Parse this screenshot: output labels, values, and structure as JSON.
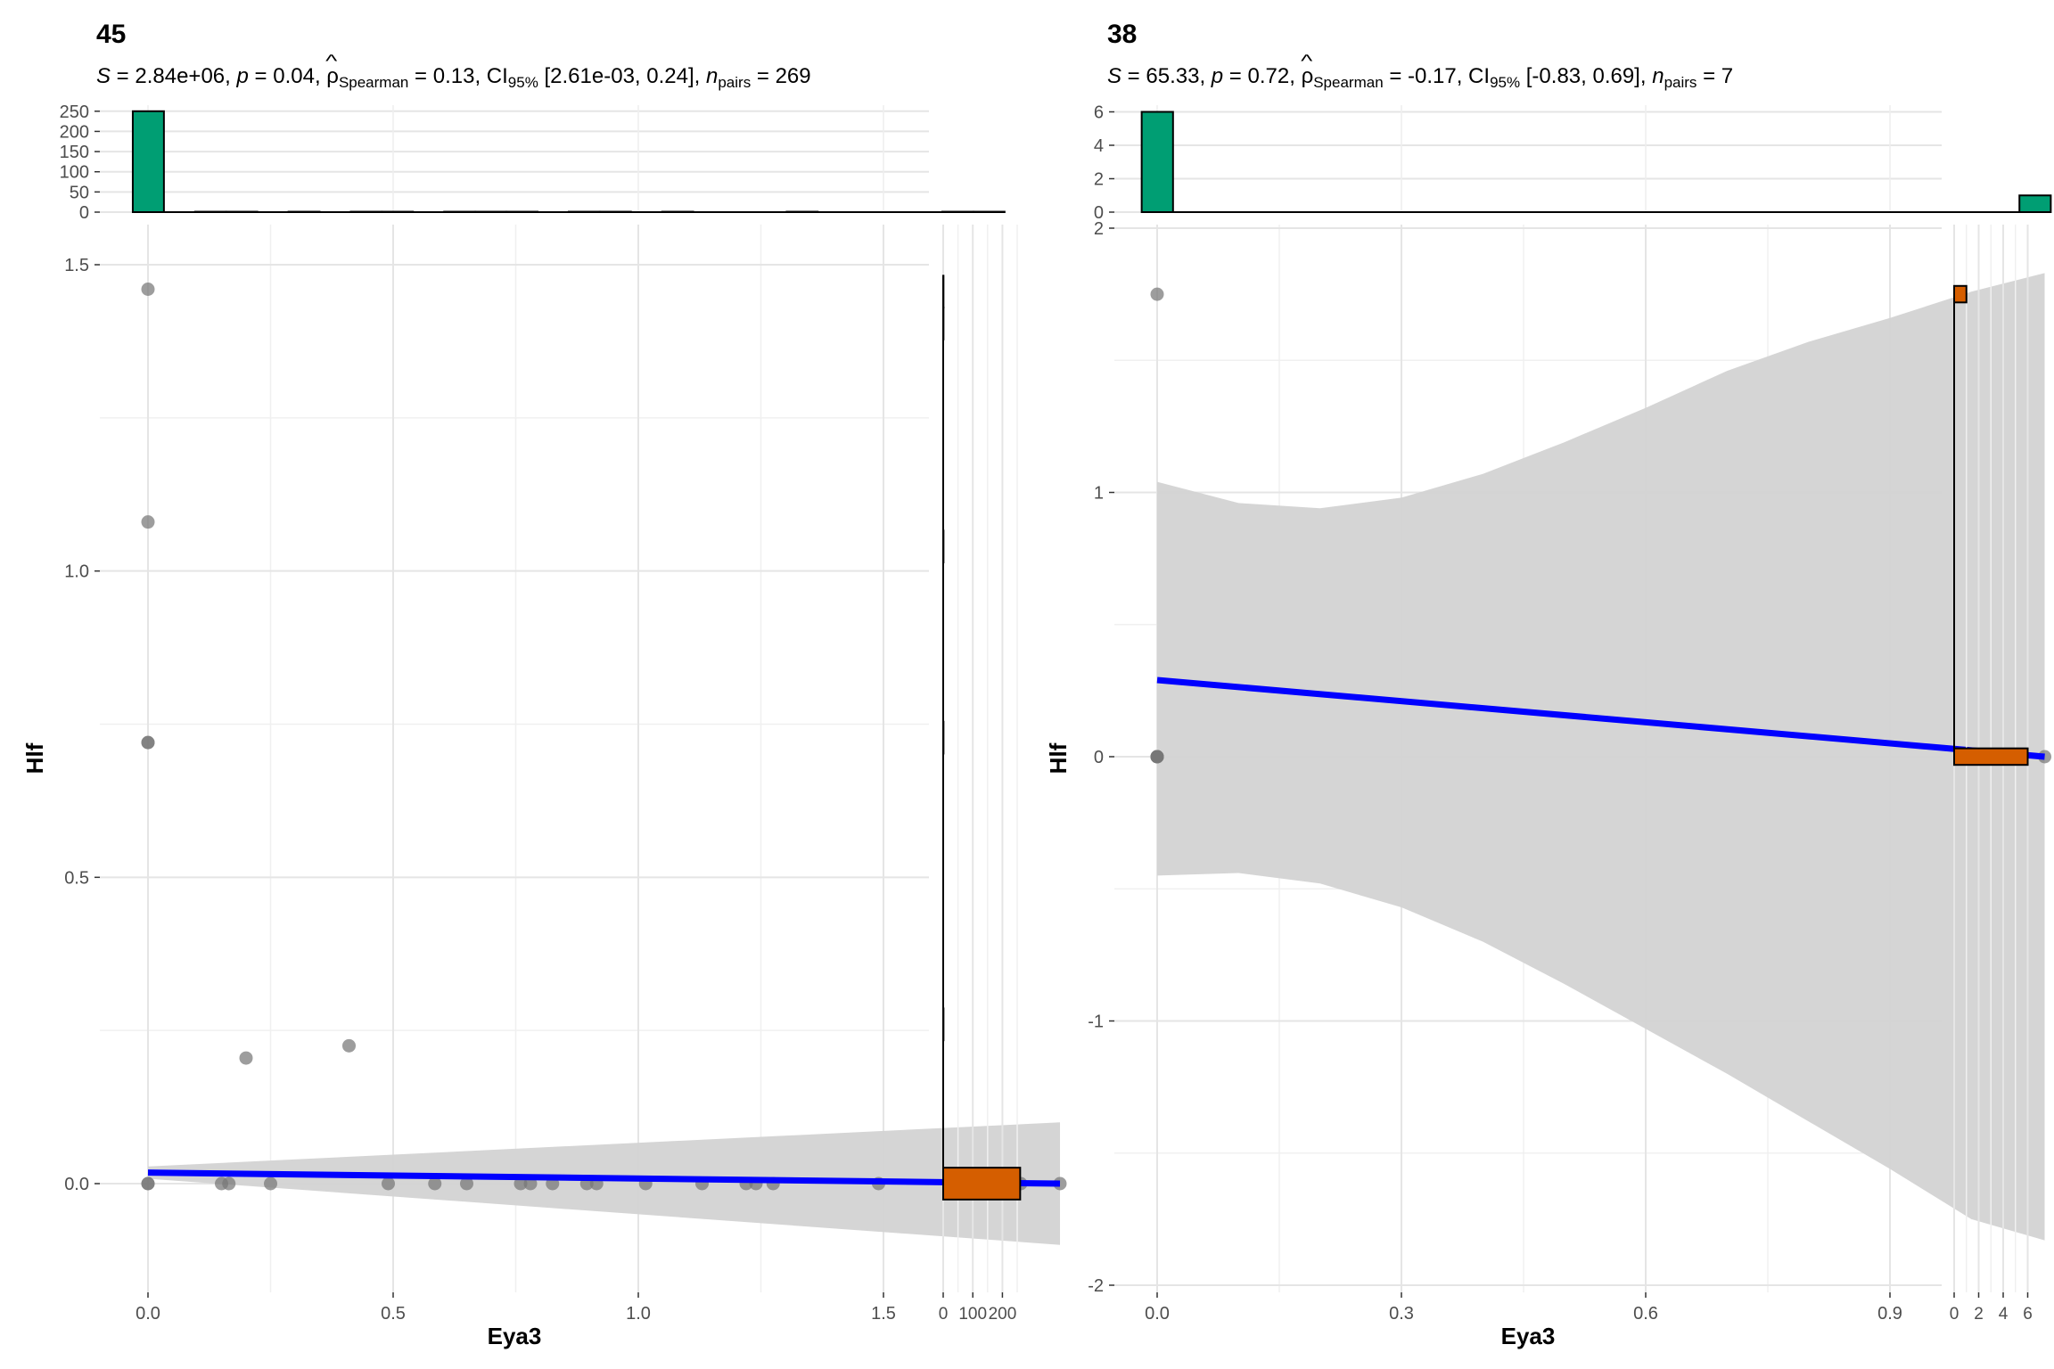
{
  "chart_data": [
    {
      "type": "scatter",
      "title": "45",
      "subtitle": {
        "S": "2.84e+06",
        "p": "0.04",
        "rho": "0.13",
        "ci": "[2.61e-03, 0.24]",
        "n": "269"
      },
      "xlabel": "Eya3",
      "ylabel": "Hlf",
      "xlim": [
        -0.05,
        1.9
      ],
      "ylim": [
        -0.18,
        1.58
      ],
      "x_ticks": [
        "0.0",
        "0.5",
        "1.0",
        "1.5"
      ],
      "x_tick_values": [
        0.0,
        0.5,
        1.0,
        1.5
      ],
      "y_ticks": [
        "0.0",
        "0.5",
        "1.0",
        "1.5"
      ],
      "y_tick_values": [
        0.0,
        0.5,
        1.0,
        1.5
      ],
      "points": [
        {
          "x": 0.0,
          "y": 1.46
        },
        {
          "x": 0.0,
          "y": 1.08
        },
        {
          "x": 0.0,
          "y": 0.72
        },
        {
          "x": 0.0,
          "y": 0.72
        },
        {
          "x": 0.0,
          "y": 0.0
        },
        {
          "x": 0.0,
          "y": 0.0
        },
        {
          "x": 0.2,
          "y": 0.205
        },
        {
          "x": 0.41,
          "y": 0.225
        },
        {
          "x": 0.15,
          "y": 0.0
        },
        {
          "x": 0.165,
          "y": 0.0
        },
        {
          "x": 0.25,
          "y": 0.0
        },
        {
          "x": 0.49,
          "y": 0.0
        },
        {
          "x": 0.585,
          "y": 0.0
        },
        {
          "x": 0.65,
          "y": 0.0
        },
        {
          "x": 0.76,
          "y": 0.0
        },
        {
          "x": 0.78,
          "y": 0.0
        },
        {
          "x": 0.825,
          "y": 0.0
        },
        {
          "x": 0.895,
          "y": 0.0
        },
        {
          "x": 0.915,
          "y": 0.0
        },
        {
          "x": 1.015,
          "y": 0.0
        },
        {
          "x": 1.13,
          "y": 0.0
        },
        {
          "x": 1.22,
          "y": 0.0
        },
        {
          "x": 1.24,
          "y": 0.0
        },
        {
          "x": 1.275,
          "y": 0.0
        },
        {
          "x": 1.49,
          "y": 0.0
        },
        {
          "x": 1.78,
          "y": 0.0
        },
        {
          "x": 1.86,
          "y": 0.0
        }
      ],
      "fit": {
        "x": [
          0.0,
          1.86
        ],
        "y": [
          0.018,
          0.0
        ]
      },
      "band": {
        "x": [
          0.0,
          1.86
        ],
        "lower": [
          0.008,
          -0.1
        ],
        "upper": [
          0.028,
          0.1
        ]
      },
      "top_hist": {
        "ticks": [
          "0",
          "50",
          "100",
          "150",
          "200",
          "250"
        ],
        "tick_values": [
          0,
          50,
          100,
          150,
          200,
          250
        ],
        "ymax": 265,
        "bin_start": -0.031,
        "bin_width": 0.0635,
        "counts": [
          250,
          0,
          1,
          1,
          0,
          1,
          0,
          1,
          1,
          0,
          1,
          1,
          1,
          0,
          1,
          1,
          0,
          1,
          0,
          0,
          0,
          1,
          0,
          0,
          0,
          0,
          1,
          1
        ]
      },
      "right_hist": {
        "ticks": [
          "0",
          "100",
          "200"
        ],
        "tick_values": [
          0,
          100,
          200
        ],
        "xmax": 265,
        "bin_start": -0.026,
        "bin_width": 0.052,
        "counts": [
          260,
          0,
          0,
          0,
          0,
          1,
          0,
          0,
          0,
          0,
          0,
          0,
          0,
          0,
          1,
          0,
          0,
          0,
          0,
          0,
          1,
          0,
          0,
          0,
          0,
          0,
          0,
          1,
          1
        ]
      },
      "colors": {
        "top_hist": "#009E73",
        "right_hist": "#D55E00",
        "fit": "#0000FF",
        "band": "#D3D3D3",
        "points": "#777777"
      }
    },
    {
      "type": "scatter",
      "title": "38",
      "subtitle": {
        "S": "65.33",
        "p": "0.72",
        "rho": "-0.17",
        "ci": "[-0.83, 0.69]",
        "n": "7"
      },
      "xlabel": "Eya3",
      "ylabel": "Hlf",
      "xlim": [
        -0.06,
        1.16
      ],
      "ylim": [
        -2.0,
        2.0
      ],
      "x_ticks": [
        "0.0",
        "0.3",
        "0.6",
        "0.9"
      ],
      "x_tick_values": [
        0.0,
        0.3,
        0.6,
        0.9
      ],
      "y_ticks": [
        "-2",
        "-1",
        "0",
        "1",
        "2"
      ],
      "y_tick_values": [
        -2,
        -1,
        0,
        1,
        2
      ],
      "points": [
        {
          "x": 0.0,
          "y": 1.75
        },
        {
          "x": 0.0,
          "y": 0.0
        },
        {
          "x": 0.0,
          "y": 0.0
        },
        {
          "x": 0.0,
          "y": 0.0
        },
        {
          "x": 0.0,
          "y": 0.0
        },
        {
          "x": 0.0,
          "y": 0.0
        },
        {
          "x": 1.09,
          "y": 0.0
        }
      ],
      "fit": {
        "x": [
          0.0,
          1.09
        ],
        "y": [
          0.29,
          0.0
        ]
      },
      "band": {
        "x": [
          0.0,
          0.1,
          0.2,
          0.3,
          0.4,
          0.5,
          0.6,
          0.7,
          0.8,
          0.9,
          1.0,
          1.09
        ],
        "lower": [
          -0.45,
          -0.44,
          -0.48,
          -0.57,
          -0.7,
          -0.86,
          -1.03,
          -1.2,
          -1.38,
          -1.56,
          -1.75,
          -1.83
        ],
        "upper": [
          1.04,
          0.96,
          0.94,
          0.98,
          1.07,
          1.19,
          1.32,
          1.46,
          1.57,
          1.66,
          1.76,
          1.83
        ]
      },
      "top_hist": {
        "ticks": [
          "0",
          "2",
          "4",
          "6"
        ],
        "tick_values": [
          0,
          2,
          4,
          6
        ],
        "ymax": 6.4,
        "bin_start": -0.019,
        "bin_width": 0.0385,
        "counts": [
          6,
          0,
          0,
          0,
          0,
          0,
          0,
          0,
          0,
          0,
          0,
          0,
          0,
          0,
          0,
          0,
          0,
          0,
          0,
          0,
          0,
          0,
          0,
          0,
          0,
          0,
          0,
          0,
          1
        ]
      },
      "right_hist": {
        "ticks": [
          "0",
          "2",
          "4",
          "6"
        ],
        "tick_values": [
          0,
          2,
          4,
          6
        ],
        "xmax": 6.4,
        "bin_start": -0.031,
        "bin_width": 0.0625,
        "counts": [
          6,
          0,
          0,
          0,
          0,
          0,
          0,
          0,
          0,
          0,
          0,
          0,
          0,
          0,
          0,
          0,
          0,
          0,
          0,
          0,
          0,
          0,
          0,
          0,
          0,
          0,
          0,
          0,
          1
        ]
      },
      "colors": {
        "top_hist": "#009E73",
        "right_hist": "#D55E00",
        "fit": "#0000FF",
        "band": "#D3D3D3",
        "points": "#777777"
      }
    }
  ]
}
